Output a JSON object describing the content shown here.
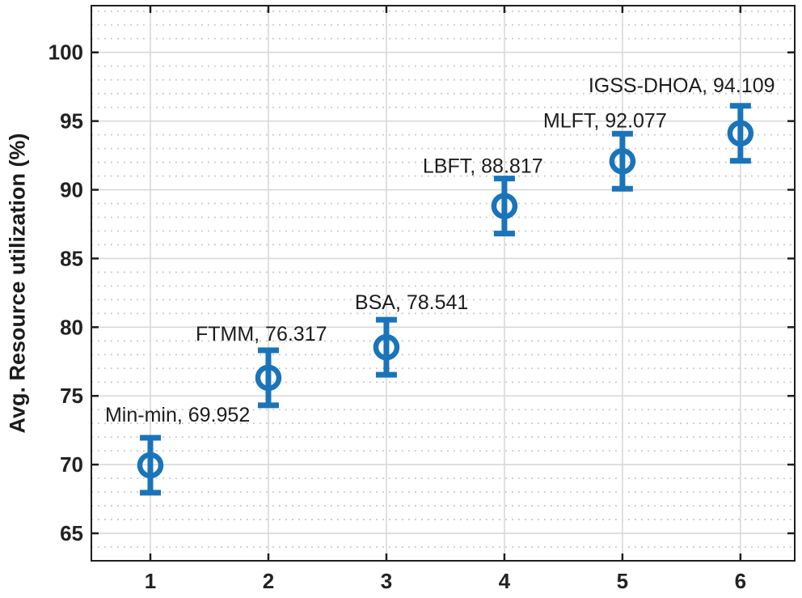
{
  "chart_data": {
    "type": "scatter",
    "subtype": "errorbar",
    "title": "",
    "xlabel": "",
    "ylabel": "Avg. Resource utilization (%)",
    "points": [
      {
        "x": 1,
        "label": "Min-min",
        "value": 69.952,
        "error": 2.0
      },
      {
        "x": 2,
        "label": "FTMM",
        "value": 76.317,
        "error": 2.0
      },
      {
        "x": 3,
        "label": "BSA",
        "value": 78.541,
        "error": 2.0
      },
      {
        "x": 4,
        "label": "LBFT",
        "value": 88.817,
        "error": 2.0
      },
      {
        "x": 5,
        "label": "MLFT",
        "value": 92.077,
        "error": 2.0
      },
      {
        "x": 6,
        "label": "IGSS-DHOA",
        "value": 94.109,
        "error": 2.0
      }
    ],
    "annotation_format": "{label}, {value}",
    "xticks": [
      1,
      2,
      3,
      4,
      5,
      6
    ],
    "yticks": [
      65,
      70,
      75,
      80,
      85,
      90,
      95,
      100
    ],
    "xlim": [
      0.5,
      6.46
    ],
    "ylim": [
      63,
      103.4
    ],
    "grid": {
      "major": "solid",
      "minor_y": "dotted",
      "minor_step_y": 1,
      "minor_x": "none"
    },
    "legend": "none",
    "colors": {
      "marker": "#1a74ba",
      "grid_major": "#d8d8d8",
      "grid_minor": "#c6c6c6",
      "axis": "#1f1f1f",
      "text": "#1c1c1c",
      "background": "#ffffff"
    }
  }
}
